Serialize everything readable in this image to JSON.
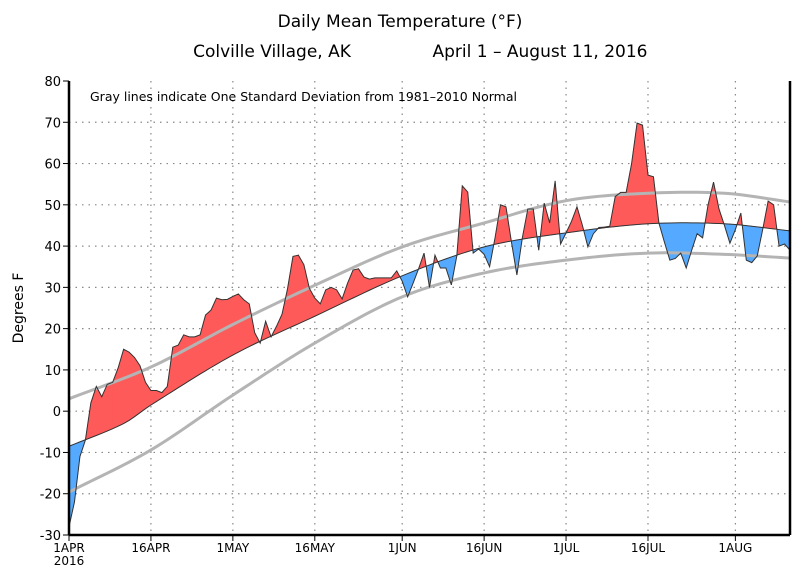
{
  "chart_data": {
    "type": "area",
    "title": "Daily Mean Temperature (°F)",
    "subtitle_location": "Colville Village, AK",
    "subtitle_dates": "April 1 – August 11, 2016",
    "ylabel": "Degrees F",
    "xlabel": "",
    "annotation": "Gray lines indicate One Standard Deviation from 1981–2010 Normal",
    "ylim": [
      -30,
      80
    ],
    "yticks": [
      -30,
      -20,
      -10,
      0,
      10,
      20,
      30,
      40,
      50,
      60,
      70,
      80
    ],
    "xrange": [
      "2016-04-01",
      "2016-08-11"
    ],
    "xticks": [
      {
        "label": "1APR",
        "sublabel": "2016",
        "date": "2016-04-01"
      },
      {
        "label": "16APR",
        "date": "2016-04-16"
      },
      {
        "label": "1MAY",
        "date": "2016-05-01"
      },
      {
        "label": "16MAY",
        "date": "2016-05-16"
      },
      {
        "label": "1JUN",
        "date": "2016-06-01"
      },
      {
        "label": "16JUN",
        "date": "2016-06-16"
      },
      {
        "label": "1JUL",
        "date": "2016-07-01"
      },
      {
        "label": "16JUL",
        "date": "2016-07-16"
      },
      {
        "label": "1AUG",
        "date": "2016-08-01"
      }
    ],
    "grid": true,
    "start_date": "2016-04-01",
    "observed_daily_mean": [
      -28,
      -22,
      -11,
      -7,
      2,
      6,
      3.5,
      6.5,
      7,
      10.5,
      15,
      14.3,
      13,
      11,
      7,
      5,
      5,
      4.5,
      6,
      15.5,
      16,
      18.5,
      18,
      18,
      18.5,
      23.3,
      24.5,
      27.4,
      27,
      27.1,
      27.8,
      28.4,
      27,
      26,
      19,
      16.5,
      21.8,
      18,
      20.6,
      23.5,
      29.6,
      37.5,
      37.8,
      35.5,
      29.8,
      27.4,
      26,
      29.4,
      30,
      29.4,
      27.2,
      31,
      34.2,
      34.5,
      32.5,
      32,
      32.3,
      32.3,
      32.3,
      32.3,
      34,
      31.5,
      27.7,
      31,
      34.5,
      38.3,
      30,
      37.8,
      34.7,
      34.7,
      30.6,
      37.6,
      54.6,
      53.1,
      38.3,
      39.3,
      38,
      35,
      42,
      50,
      49.5,
      41,
      33,
      42,
      49,
      49,
      39,
      50.4,
      45.6,
      55.8,
      40.5,
      43.2,
      46,
      49.5,
      45,
      39.8,
      43,
      44.5,
      44.6,
      44.8,
      52,
      53,
      53,
      60,
      69.8,
      69.3,
      57.2,
      56.8,
      45.6,
      41,
      36.6,
      37,
      38.3,
      34.7,
      39,
      43,
      42,
      50,
      55.5,
      49,
      45,
      40.7,
      44,
      48,
      36.6,
      36,
      37.6,
      44,
      50.9,
      50,
      40,
      40.5,
      39
    ],
    "normal": [
      {
        "date": "2016-04-01",
        "value": -8.5
      },
      {
        "date": "2016-04-11",
        "value": -3
      },
      {
        "date": "2016-04-16",
        "value": 1.5
      },
      {
        "date": "2016-05-01",
        "value": 13.6
      },
      {
        "date": "2016-05-16",
        "value": 23
      },
      {
        "date": "2016-06-01",
        "value": 32.8
      },
      {
        "date": "2016-06-16",
        "value": 39.8
      },
      {
        "date": "2016-07-01",
        "value": 43.2
      },
      {
        "date": "2016-07-16",
        "value": 45.4
      },
      {
        "date": "2016-07-30",
        "value": 45.4
      },
      {
        "date": "2016-08-11",
        "value": 43.7
      }
    ],
    "upper_std": [
      {
        "date": "2016-04-01",
        "value": 3
      },
      {
        "date": "2016-04-16",
        "value": 10.7
      },
      {
        "date": "2016-05-01",
        "value": 21
      },
      {
        "date": "2016-05-16",
        "value": 30.5
      },
      {
        "date": "2016-06-01",
        "value": 39.8
      },
      {
        "date": "2016-06-16",
        "value": 45.6
      },
      {
        "date": "2016-07-01",
        "value": 51
      },
      {
        "date": "2016-07-16",
        "value": 52.8
      },
      {
        "date": "2016-07-30",
        "value": 52.8
      },
      {
        "date": "2016-08-11",
        "value": 50.7
      }
    ],
    "lower_std": [
      {
        "date": "2016-04-01",
        "value": -19.6
      },
      {
        "date": "2016-04-16",
        "value": -9.4
      },
      {
        "date": "2016-05-01",
        "value": 3.9
      },
      {
        "date": "2016-05-16",
        "value": 16.5
      },
      {
        "date": "2016-06-01",
        "value": 27.7
      },
      {
        "date": "2016-06-16",
        "value": 33.5
      },
      {
        "date": "2016-07-01",
        "value": 36.6
      },
      {
        "date": "2016-07-16",
        "value": 38.3
      },
      {
        "date": "2016-07-30",
        "value": 38
      },
      {
        "date": "2016-08-11",
        "value": 37.1
      }
    ],
    "colors": {
      "above_normal": "#ff5a5a",
      "below_normal": "#55aaff",
      "std_lines": "#b4b4b4",
      "outline": "#333333",
      "grid": "#888888"
    }
  }
}
